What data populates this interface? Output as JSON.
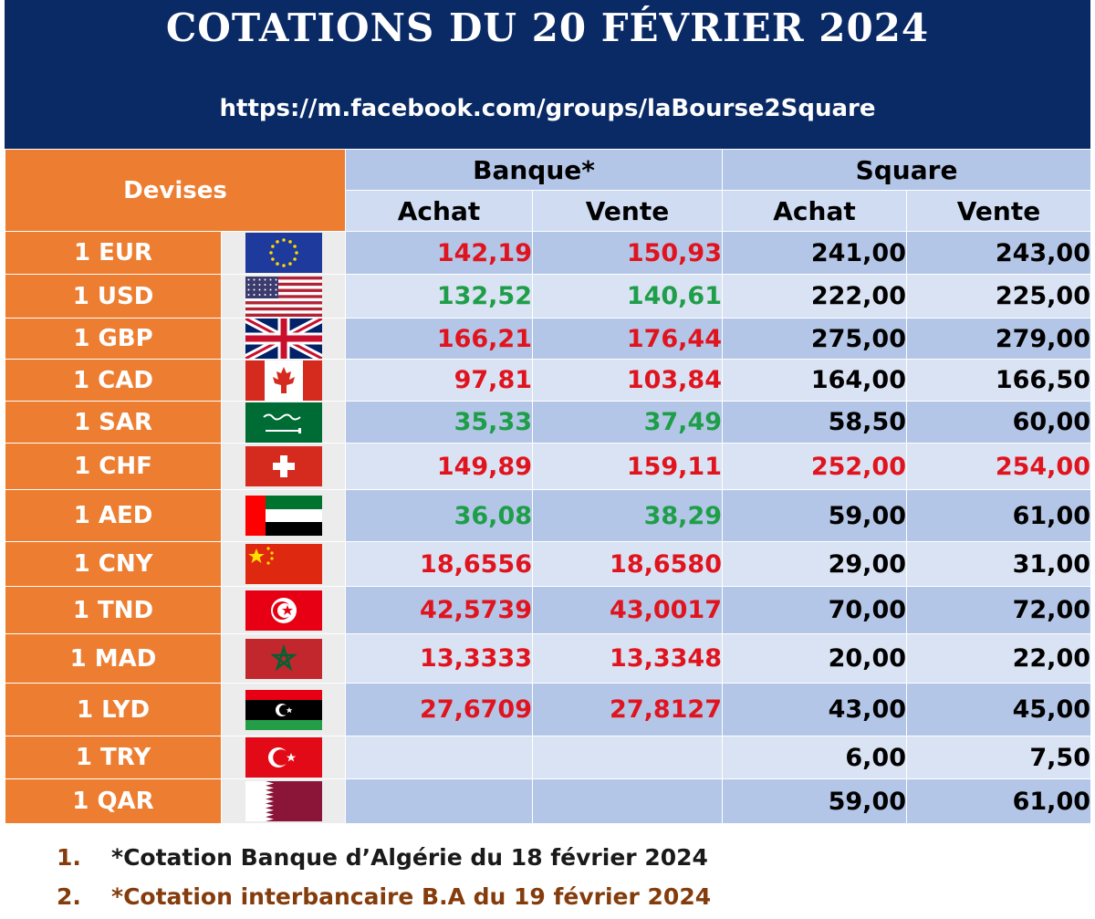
{
  "header": {
    "title": "COTATIONS DU 20 FÉVRIER 2024",
    "url": "https://m.facebook.com/groups/laBourse2Square"
  },
  "table": {
    "devises_label": "Devises",
    "group_bank": "Banque*",
    "group_square": "Square",
    "achat_label": "Achat",
    "vente_label": "Vente",
    "rows": [
      {
        "currency": "1 EUR",
        "flag": "eu-flag",
        "bank_buy": "142,19",
        "bank_sell": "150,93",
        "bank_color": "red",
        "square_buy": "241,00",
        "square_sell": "243,00",
        "square_color": "black"
      },
      {
        "currency": "1 USD",
        "flag": "us-flag",
        "bank_buy": "132,52",
        "bank_sell": "140,61",
        "bank_color": "green",
        "square_buy": "222,00",
        "square_sell": "225,00",
        "square_color": "black"
      },
      {
        "currency": "1 GBP",
        "flag": "uk-flag",
        "bank_buy": "166,21",
        "bank_sell": "176,44",
        "bank_color": "red",
        "square_buy": "275,00",
        "square_sell": "279,00",
        "square_color": "black"
      },
      {
        "currency": "1 CAD",
        "flag": "canada-flag",
        "bank_buy": "97,81",
        "bank_sell": "103,84",
        "bank_color": "red",
        "square_buy": "164,00",
        "square_sell": "166,50",
        "square_color": "black"
      },
      {
        "currency": "1 SAR",
        "flag": "saudi-flag",
        "bank_buy": "35,33",
        "bank_sell": "37,49",
        "bank_color": "green",
        "square_buy": "58,50",
        "square_sell": "60,00",
        "square_color": "black"
      },
      {
        "currency": "1 CHF",
        "flag": "swiss-flag",
        "bank_buy": "149,89",
        "bank_sell": "159,11",
        "bank_color": "red",
        "square_buy": "252,00",
        "square_sell": "254,00",
        "square_color": "red"
      },
      {
        "currency": "1 AED",
        "flag": "uae-flag",
        "bank_buy": "36,08",
        "bank_sell": "38,29",
        "bank_color": "green",
        "square_buy": "59,00",
        "square_sell": "61,00",
        "square_color": "black"
      },
      {
        "currency": "1 CNY",
        "flag": "china-flag",
        "bank_buy": "18,6556",
        "bank_sell": "18,6580",
        "bank_color": "red",
        "square_buy": "29,00",
        "square_sell": "31,00",
        "square_color": "black"
      },
      {
        "currency": "1 TND",
        "flag": "tunisia-flag",
        "bank_buy": "42,5739",
        "bank_sell": "43,0017",
        "bank_color": "red",
        "square_buy": "70,00",
        "square_sell": "72,00",
        "square_color": "black"
      },
      {
        "currency": "1 MAD",
        "flag": "morocco-flag",
        "bank_buy": "13,3333",
        "bank_sell": "13,3348",
        "bank_color": "red",
        "square_buy": "20,00",
        "square_sell": "22,00",
        "square_color": "black"
      },
      {
        "currency": "1 LYD",
        "flag": "libya-flag",
        "bank_buy": "27,6709",
        "bank_sell": "27,8127",
        "bank_color": "red",
        "square_buy": "43,00",
        "square_sell": "45,00",
        "square_color": "black"
      },
      {
        "currency": "1 TRY",
        "flag": "turkey-flag",
        "bank_buy": "",
        "bank_sell": "",
        "bank_color": "red",
        "square_buy": "6,00",
        "square_sell": "7,50",
        "square_color": "black"
      },
      {
        "currency": "1 QAR",
        "flag": "qatar-flag",
        "bank_buy": "",
        "bank_sell": "",
        "bank_color": "red",
        "square_buy": "59,00",
        "square_sell": "61,00",
        "square_color": "black"
      }
    ]
  },
  "notes": [
    {
      "number": "1.",
      "text": "*Cotation Banque d’Algérie du 18 février 2024"
    },
    {
      "number": "2.",
      "text": "*Cotation interbancaire B.A du 19 février 2024"
    }
  ],
  "colors": {
    "header_bg": "#0a2a66",
    "orange": "#ed7d31",
    "row_dark": "#b4c6e7",
    "row_light": "#dae3f3",
    "red": "#e0141e",
    "green": "#1f9e4a",
    "note_brown": "#843c0c"
  }
}
